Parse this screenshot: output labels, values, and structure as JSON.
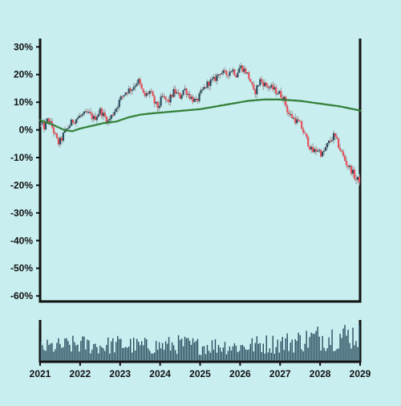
{
  "chart_data": [
    {
      "type": "candlestick",
      "title": "",
      "xlabel": "",
      "ylabel": "",
      "y_unit": "%",
      "ylim": [
        -62,
        33
      ],
      "y_ticks": [
        30,
        20,
        10,
        0,
        -10,
        -20,
        -30,
        -40,
        -50,
        -60
      ],
      "y_tick_labels": [
        "30%",
        "20%",
        "10%",
        "0%",
        "-10%",
        "-20%",
        "-30%",
        "-40%",
        "-50%",
        "-60%"
      ],
      "xlim": [
        2021.0,
        2029.0
      ],
      "x_ticks": [
        2021,
        2022,
        2023,
        2024,
        2025,
        2026,
        2027,
        2028,
        2029
      ],
      "x_tick_labels": [
        "2021",
        "2022",
        "2023",
        "2024",
        "2025",
        "2026",
        "2027",
        "2028",
        "2029"
      ],
      "grid": false,
      "legend": "none",
      "colors": {
        "up": "#2a4d5e",
        "down": "#e8505b",
        "wick": "#9a9a9a",
        "moving_average": "#2f7d32",
        "background": "#c8eef0"
      },
      "close_path": [
        [
          2021.0,
          2
        ],
        [
          2021.1,
          1
        ],
        [
          2021.2,
          4
        ],
        [
          2021.3,
          1
        ],
        [
          2021.45,
          -5
        ],
        [
          2021.55,
          -3
        ],
        [
          2021.6,
          -1
        ],
        [
          2021.8,
          3
        ],
        [
          2022.0,
          5
        ],
        [
          2022.2,
          6
        ],
        [
          2022.35,
          4
        ],
        [
          2022.5,
          7
        ],
        [
          2022.6,
          5
        ],
        [
          2022.7,
          3
        ],
        [
          2022.9,
          8
        ],
        [
          2023.0,
          11
        ],
        [
          2023.15,
          14
        ],
        [
          2023.3,
          15
        ],
        [
          2023.45,
          18
        ],
        [
          2023.6,
          12
        ],
        [
          2023.75,
          14
        ],
        [
          2023.85,
          10
        ],
        [
          2023.95,
          8
        ],
        [
          2024.05,
          12
        ],
        [
          2024.2,
          10
        ],
        [
          2024.35,
          14
        ],
        [
          2024.5,
          12
        ],
        [
          2024.6,
          15
        ],
        [
          2024.75,
          12
        ],
        [
          2024.9,
          10
        ],
        [
          2025.05,
          14
        ],
        [
          2025.2,
          17
        ],
        [
          2025.35,
          18
        ],
        [
          2025.5,
          21
        ],
        [
          2025.65,
          20
        ],
        [
          2025.8,
          22
        ],
        [
          2025.9,
          20
        ],
        [
          2026.0,
          23
        ],
        [
          2026.15,
          21
        ],
        [
          2026.25,
          18
        ],
        [
          2026.35,
          13
        ],
        [
          2026.5,
          18
        ],
        [
          2026.65,
          16
        ],
        [
          2026.8,
          15
        ],
        [
          2026.9,
          14
        ],
        [
          2027.0,
          13
        ],
        [
          2027.1,
          11
        ],
        [
          2027.2,
          6
        ],
        [
          2027.35,
          4
        ],
        [
          2027.5,
          2
        ],
        [
          2027.65,
          -3
        ],
        [
          2027.8,
          -8
        ],
        [
          2027.95,
          -7
        ],
        [
          2028.05,
          -9
        ],
        [
          2028.2,
          -5
        ],
        [
          2028.35,
          -2
        ],
        [
          2028.5,
          -7
        ],
        [
          2028.65,
          -12
        ],
        [
          2028.8,
          -15
        ],
        [
          2028.9,
          -18
        ],
        [
          2029.0,
          -18
        ]
      ],
      "moving_average_path": [
        [
          2021.0,
          3.5
        ],
        [
          2021.3,
          2
        ],
        [
          2021.6,
          0
        ],
        [
          2021.8,
          -0.5
        ],
        [
          2022.0,
          0.5
        ],
        [
          2022.3,
          1.5
        ],
        [
          2022.6,
          2.5
        ],
        [
          2022.9,
          3
        ],
        [
          2023.2,
          4.5
        ],
        [
          2023.5,
          5.5
        ],
        [
          2023.8,
          6
        ],
        [
          2024.2,
          6.5
        ],
        [
          2024.6,
          7
        ],
        [
          2025.0,
          7.5
        ],
        [
          2025.4,
          8.5
        ],
        [
          2025.8,
          9.5
        ],
        [
          2026.2,
          10.5
        ],
        [
          2026.6,
          11
        ],
        [
          2027.0,
          11
        ],
        [
          2027.5,
          10.5
        ],
        [
          2028.0,
          9.5
        ],
        [
          2028.5,
          8.5
        ],
        [
          2029.0,
          7
        ]
      ],
      "volume_path": [
        [
          2021.0,
          0.35
        ],
        [
          2021.5,
          0.4
        ],
        [
          2022.0,
          0.45
        ],
        [
          2022.5,
          0.4
        ],
        [
          2023.0,
          0.45
        ],
        [
          2023.5,
          0.4
        ],
        [
          2024.0,
          0.4
        ],
        [
          2024.5,
          0.45
        ],
        [
          2025.0,
          0.4
        ],
        [
          2025.5,
          0.42
        ],
        [
          2026.0,
          0.38
        ],
        [
          2026.5,
          0.45
        ],
        [
          2027.0,
          0.48
        ],
        [
          2027.5,
          0.55
        ],
        [
          2028.0,
          0.65
        ],
        [
          2028.5,
          0.68
        ],
        [
          2029.0,
          0.72
        ]
      ]
    }
  ]
}
